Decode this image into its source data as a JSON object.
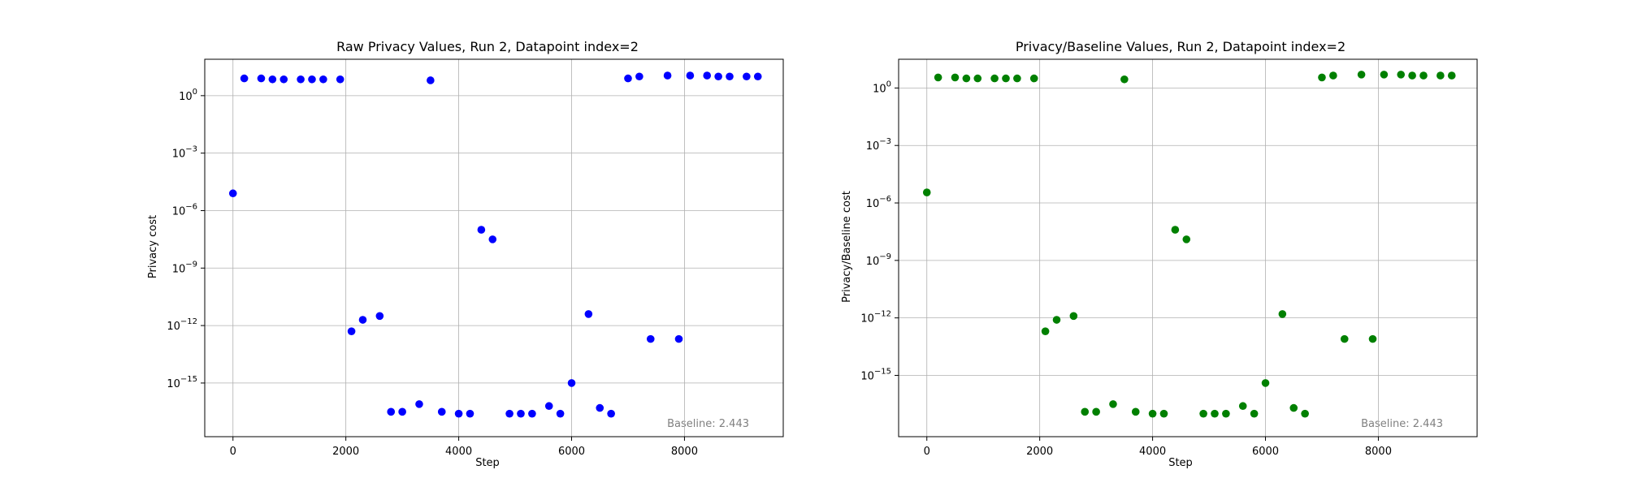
{
  "chart_data": [
    {
      "type": "scatter",
      "title": "Raw Privacy Values, Run 2, Datapoint index=2",
      "xlabel": "Step",
      "ylabel": "Privacy cost",
      "xlim": [
        -500,
        9750
      ],
      "ylim_log10": [
        -17.8,
        1.9
      ],
      "yscale": "log",
      "grid": true,
      "color": "#0000ff",
      "xticks": [
        0,
        2000,
        4000,
        6000,
        8000
      ],
      "xtick_labels": [
        "0",
        "2000",
        "4000",
        "6000",
        "8000"
      ],
      "yticks_log10": [
        0,
        -3,
        -6,
        -9,
        -12,
        -15
      ],
      "ytick_bases": [
        "10",
        "10",
        "10",
        "10",
        "10",
        "10"
      ],
      "ytick_exponents": [
        "0",
        "−3",
        "−6",
        "−9",
        "−12",
        "−15"
      ],
      "annotation": "Baseline: 2.443",
      "x": [
        0,
        200,
        500,
        700,
        900,
        1200,
        1400,
        1600,
        1900,
        2100,
        2300,
        2600,
        2800,
        3000,
        3300,
        3500,
        3700,
        4000,
        4200,
        4400,
        4600,
        4900,
        5100,
        5300,
        5600,
        5800,
        6000,
        6300,
        6500,
        6700,
        7000,
        7200,
        7400,
        7700,
        7900,
        8100,
        8400,
        8600,
        8800,
        9100,
        9300
      ],
      "y_log10": [
        -5.1,
        0.9,
        0.9,
        0.85,
        0.85,
        0.85,
        0.85,
        0.85,
        0.85,
        -12.3,
        -11.7,
        -11.5,
        -16.5,
        -16.5,
        -16.1,
        0.8,
        -16.5,
        -16.6,
        -16.6,
        -7.0,
        -7.5,
        -16.6,
        -16.6,
        -16.6,
        -16.2,
        -16.6,
        -15.0,
        -11.4,
        -16.3,
        -16.6,
        0.9,
        1.0,
        -12.7,
        1.05,
        -12.7,
        1.05,
        1.05,
        1.0,
        1.0,
        1.0,
        1.0
      ]
    },
    {
      "type": "scatter",
      "title": "Privacy/Baseline Values, Run 2, Datapoint index=2",
      "xlabel": "Step",
      "ylabel": "Privacy/Baseline cost",
      "xlim": [
        -500,
        9750
      ],
      "ylim_log10": [
        -18.2,
        1.5
      ],
      "yscale": "log",
      "grid": true,
      "color": "#008000",
      "xticks": [
        0,
        2000,
        4000,
        6000,
        8000
      ],
      "xtick_labels": [
        "0",
        "2000",
        "4000",
        "6000",
        "8000"
      ],
      "yticks_log10": [
        0,
        -3,
        -6,
        -9,
        -12,
        -15
      ],
      "ytick_bases": [
        "10",
        "10",
        "10",
        "10",
        "10",
        "10"
      ],
      "ytick_exponents": [
        "0",
        "−3",
        "−6",
        "−9",
        "−12",
        "−15"
      ],
      "annotation": "Baseline: 2.443",
      "x": [
        0,
        200,
        500,
        700,
        900,
        1200,
        1400,
        1600,
        1900,
        2100,
        2300,
        2600,
        2800,
        3000,
        3300,
        3500,
        3700,
        4000,
        4200,
        4400,
        4600,
        4900,
        5100,
        5300,
        5600,
        5800,
        6000,
        6300,
        6500,
        6700,
        7000,
        7200,
        7400,
        7700,
        7900,
        8100,
        8400,
        8600,
        8800,
        9100,
        9300
      ],
      "y_log10": [
        -5.45,
        0.55,
        0.55,
        0.5,
        0.5,
        0.5,
        0.5,
        0.5,
        0.5,
        -12.7,
        -12.1,
        -11.9,
        -16.9,
        -16.9,
        -16.5,
        0.45,
        -16.9,
        -17.0,
        -17.0,
        -7.4,
        -7.9,
        -17.0,
        -17.0,
        -17.0,
        -16.6,
        -17.0,
        -15.4,
        -11.8,
        -16.7,
        -17.0,
        0.55,
        0.65,
        -13.1,
        0.7,
        -13.1,
        0.7,
        0.7,
        0.65,
        0.65,
        0.65,
        0.65
      ]
    }
  ]
}
